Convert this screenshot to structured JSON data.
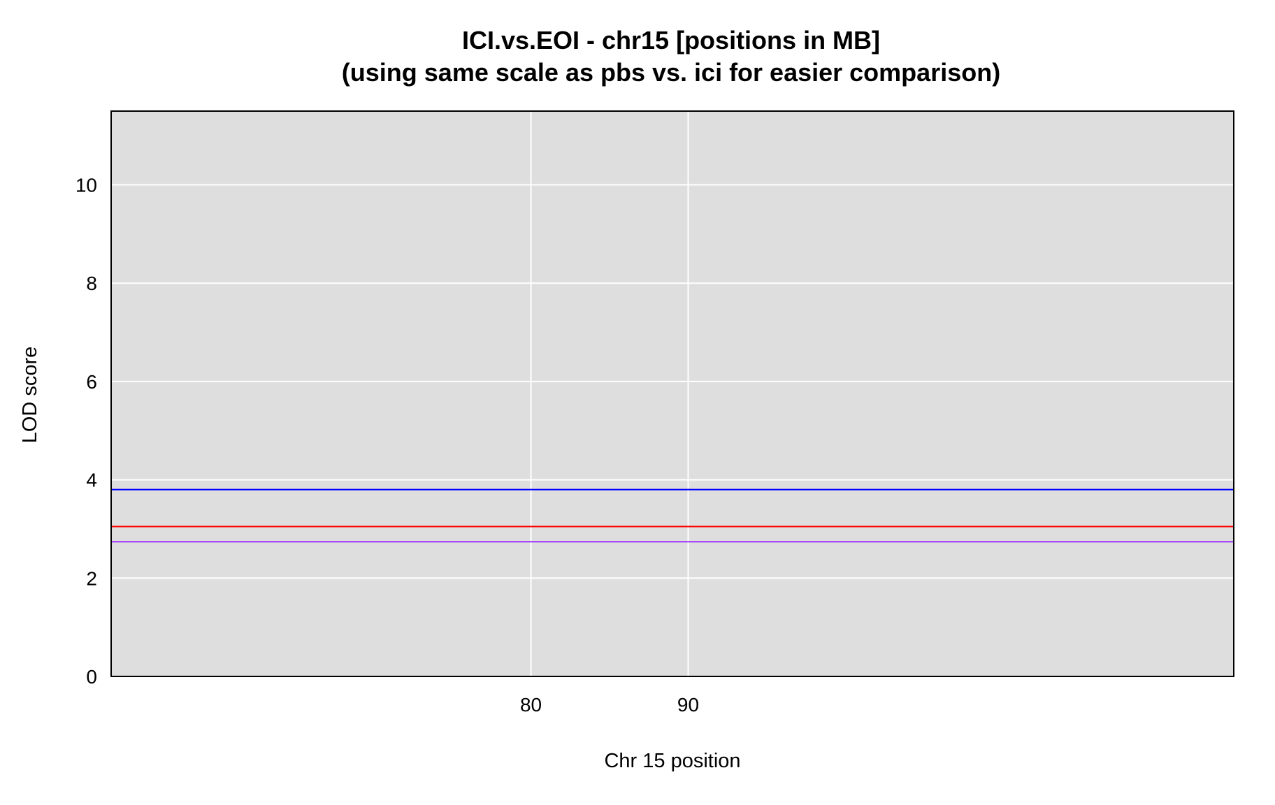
{
  "chart_data": {
    "type": "line",
    "title": "ICI.vs.EOI - chr15 [positions in MB]",
    "subtitle": "(using same scale as pbs vs. ici for easier comparison)",
    "xlabel": "Chr 15 position",
    "ylabel": "LOD score",
    "xlim": [
      53.3,
      124.7
    ],
    "ylim": [
      0,
      11.5
    ],
    "x_ticks": [
      80,
      90
    ],
    "y_ticks": [
      0,
      2,
      4,
      6,
      8,
      10
    ],
    "grid": true,
    "background": "#dedede",
    "gridline_color": "#ffffff",
    "threshold_lines": [
      {
        "y": 3.8,
        "color": "#0000ff"
      },
      {
        "y": 3.05,
        "color": "#ff0000"
      },
      {
        "y": 2.74,
        "color": "#9b30ff"
      }
    ]
  }
}
